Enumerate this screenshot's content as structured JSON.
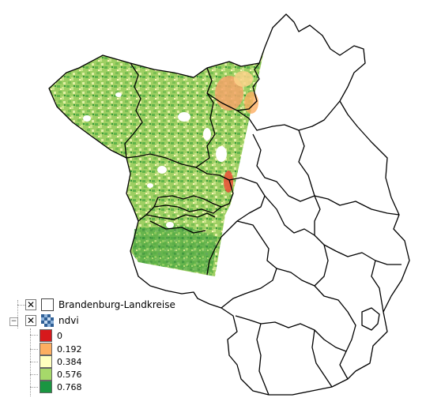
{
  "layers": [
    {
      "name": "Brandenburg-Landkreise",
      "checked": true,
      "icon": "polygon-layer-icon"
    },
    {
      "name": "ndvi",
      "checked": true,
      "icon": "raster-layer-icon",
      "expanded": true
    }
  ],
  "ndvi_classes": [
    {
      "label": "0",
      "color": "#d7191c"
    },
    {
      "label": "0.192",
      "color": "#fdae61"
    },
    {
      "label": "0.384",
      "color": "#ffffbf"
    },
    {
      "label": "0.576",
      "color": "#a6d96a"
    },
    {
      "label": "0.768",
      "color": "#1a9641"
    }
  ],
  "check_glyph": "✕",
  "expander_glyph": "−"
}
